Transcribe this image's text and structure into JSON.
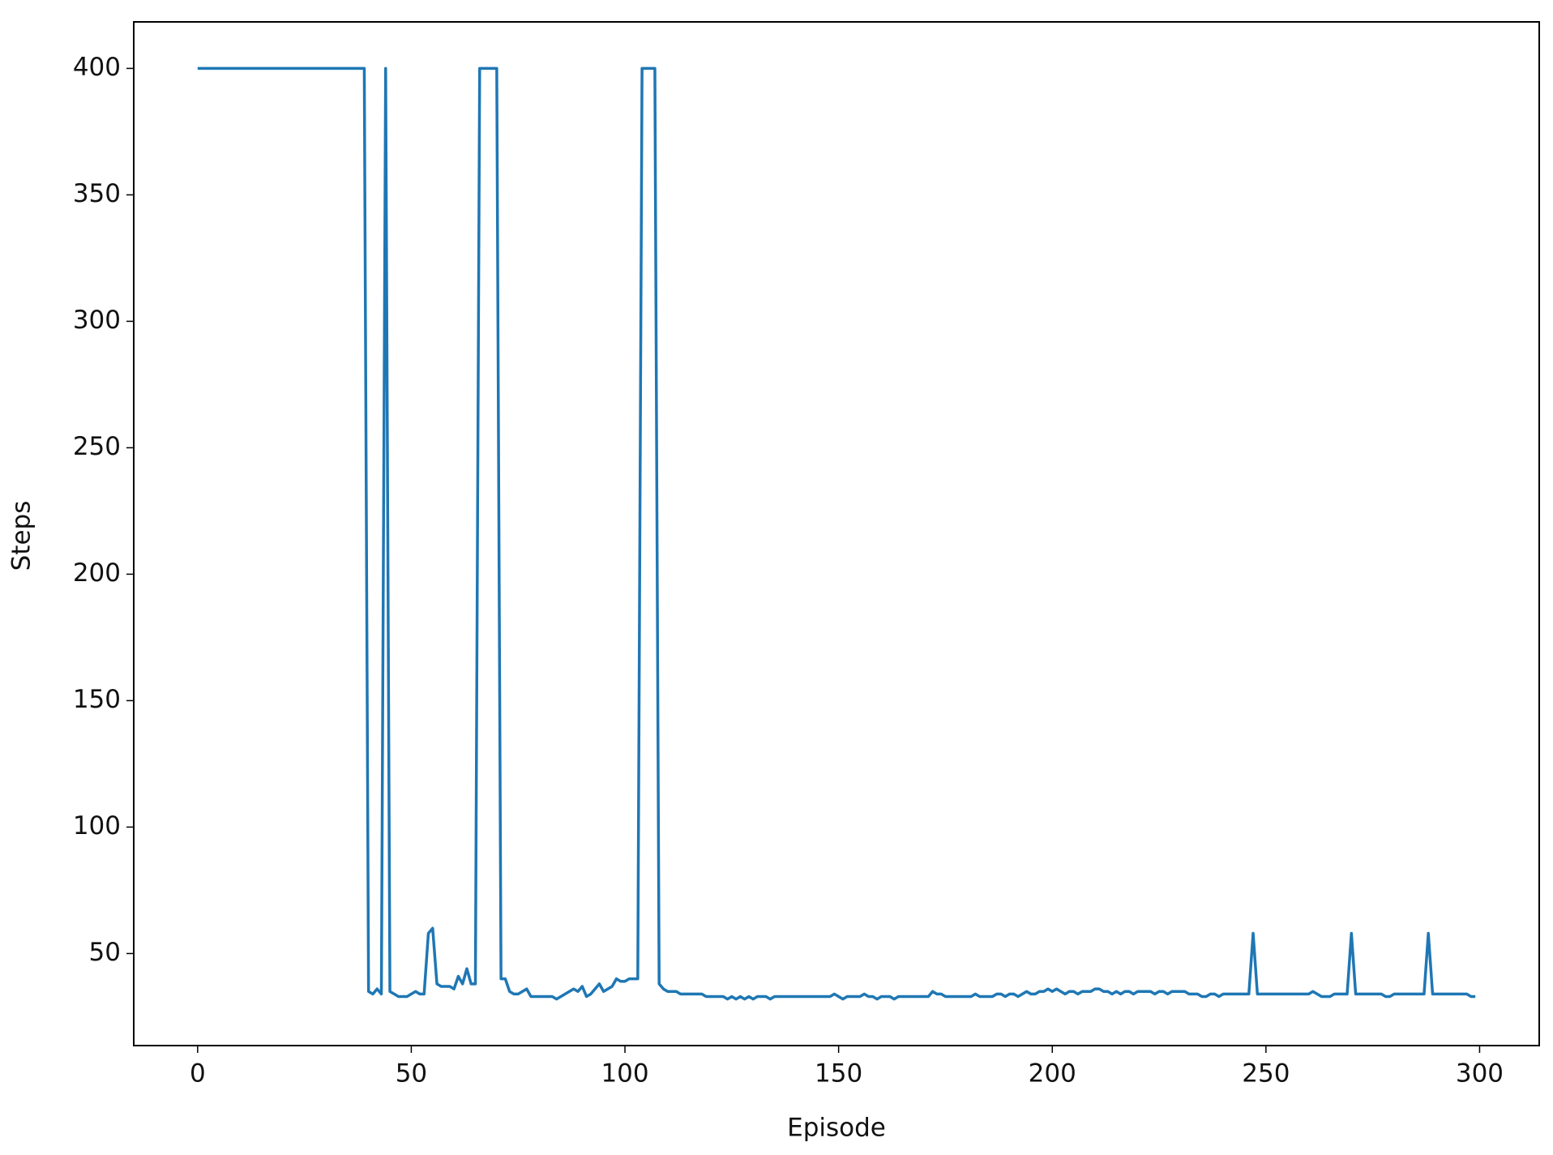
{
  "chart_data": {
    "type": "line",
    "xlabel": "Episode",
    "ylabel": "Steps",
    "xlim": [
      -14.95,
      313.95
    ],
    "ylim": [
      13.6,
      418.4
    ],
    "xticks": [
      0,
      50,
      100,
      150,
      200,
      250,
      300
    ],
    "yticks": [
      50,
      100,
      150,
      200,
      250,
      300,
      350,
      400
    ],
    "x": [
      0,
      1,
      2,
      3,
      4,
      5,
      6,
      7,
      8,
      9,
      10,
      11,
      12,
      13,
      14,
      15,
      16,
      17,
      18,
      19,
      20,
      21,
      22,
      23,
      24,
      25,
      26,
      27,
      28,
      29,
      30,
      31,
      32,
      33,
      34,
      35,
      36,
      37,
      38,
      39,
      40,
      41,
      42,
      43,
      44,
      45,
      46,
      47,
      48,
      49,
      50,
      51,
      52,
      53,
      54,
      55,
      56,
      57,
      58,
      59,
      60,
      61,
      62,
      63,
      64,
      65,
      66,
      67,
      68,
      69,
      70,
      71,
      72,
      73,
      74,
      75,
      76,
      77,
      78,
      79,
      80,
      81,
      82,
      83,
      84,
      85,
      86,
      87,
      88,
      89,
      90,
      91,
      92,
      93,
      94,
      95,
      96,
      97,
      98,
      99,
      100,
      101,
      102,
      103,
      104,
      105,
      106,
      107,
      108,
      109,
      110,
      111,
      112,
      113,
      114,
      115,
      116,
      117,
      118,
      119,
      120,
      121,
      122,
      123,
      124,
      125,
      126,
      127,
      128,
      129,
      130,
      131,
      132,
      133,
      134,
      135,
      136,
      137,
      138,
      139,
      140,
      141,
      142,
      143,
      144,
      145,
      146,
      147,
      148,
      149,
      150,
      151,
      152,
      153,
      154,
      155,
      156,
      157,
      158,
      159,
      160,
      161,
      162,
      163,
      164,
      165,
      166,
      167,
      168,
      169,
      170,
      171,
      172,
      173,
      174,
      175,
      176,
      177,
      178,
      179,
      180,
      181,
      182,
      183,
      184,
      185,
      186,
      187,
      188,
      189,
      190,
      191,
      192,
      193,
      194,
      195,
      196,
      197,
      198,
      199,
      200,
      201,
      202,
      203,
      204,
      205,
      206,
      207,
      208,
      209,
      210,
      211,
      212,
      213,
      214,
      215,
      216,
      217,
      218,
      219,
      220,
      221,
      222,
      223,
      224,
      225,
      226,
      227,
      228,
      229,
      230,
      231,
      232,
      233,
      234,
      235,
      236,
      237,
      238,
      239,
      240,
      241,
      242,
      243,
      244,
      245,
      246,
      247,
      248,
      249,
      250,
      251,
      252,
      253,
      254,
      255,
      256,
      257,
      258,
      259,
      260,
      261,
      262,
      263,
      264,
      265,
      266,
      267,
      268,
      269,
      270,
      271,
      272,
      273,
      274,
      275,
      276,
      277,
      278,
      279,
      280,
      281,
      282,
      283,
      284,
      285,
      286,
      287,
      288,
      289,
      290,
      291,
      292,
      293,
      294,
      295,
      296,
      297,
      298,
      299
    ],
    "series": [
      {
        "name": "Steps",
        "color": "#1f77b4",
        "values": [
          400,
          400,
          400,
          400,
          400,
          400,
          400,
          400,
          400,
          400,
          400,
          400,
          400,
          400,
          400,
          400,
          400,
          400,
          400,
          400,
          400,
          400,
          400,
          400,
          400,
          400,
          400,
          400,
          400,
          400,
          400,
          400,
          400,
          400,
          400,
          400,
          400,
          400,
          400,
          400,
          35,
          34,
          36,
          34,
          400,
          35,
          34,
          33,
          33,
          33,
          34,
          35,
          34,
          34,
          58,
          60,
          38,
          37,
          37,
          37,
          36,
          41,
          38,
          44,
          38,
          38,
          400,
          400,
          400,
          400,
          400,
          40,
          40,
          35,
          34,
          34,
          35,
          36,
          33,
          33,
          33,
          33,
          33,
          33,
          32,
          33,
          34,
          35,
          36,
          35,
          37,
          33,
          34,
          36,
          38,
          35,
          36,
          37,
          40,
          39,
          39,
          40,
          40,
          40,
          400,
          400,
          400,
          400,
          38,
          36,
          35,
          35,
          35,
          34,
          34,
          34,
          34,
          34,
          34,
          33,
          33,
          33,
          33,
          33,
          32,
          33,
          32,
          33,
          32,
          33,
          32,
          33,
          33,
          33,
          32,
          33,
          33,
          33,
          33,
          33,
          33,
          33,
          33,
          33,
          33,
          33,
          33,
          33,
          33,
          34,
          33,
          32,
          33,
          33,
          33,
          33,
          34,
          33,
          33,
          32,
          33,
          33,
          33,
          32,
          33,
          33,
          33,
          33,
          33,
          33,
          33,
          33,
          35,
          34,
          34,
          33,
          33,
          33,
          33,
          33,
          33,
          33,
          34,
          33,
          33,
          33,
          33,
          34,
          34,
          33,
          34,
          34,
          33,
          34,
          35,
          34,
          34,
          35,
          35,
          36,
          35,
          36,
          35,
          34,
          35,
          35,
          34,
          35,
          35,
          35,
          36,
          36,
          35,
          35,
          34,
          35,
          34,
          35,
          35,
          34,
          35,
          35,
          35,
          35,
          34,
          35,
          35,
          34,
          35,
          35,
          35,
          35,
          34,
          34,
          34,
          33,
          33,
          34,
          34,
          33,
          34,
          34,
          34,
          34,
          34,
          34,
          34,
          58,
          34,
          34,
          34,
          34,
          34,
          34,
          34,
          34,
          34,
          34,
          34,
          34,
          34,
          35,
          34,
          33,
          33,
          33,
          34,
          34,
          34,
          34,
          58,
          34,
          34,
          34,
          34,
          34,
          34,
          34,
          33,
          33,
          34,
          34,
          34,
          34,
          34,
          34,
          34,
          34,
          58,
          34,
          34,
          34,
          34,
          34,
          34,
          34,
          34,
          34,
          33,
          33
        ]
      }
    ]
  }
}
